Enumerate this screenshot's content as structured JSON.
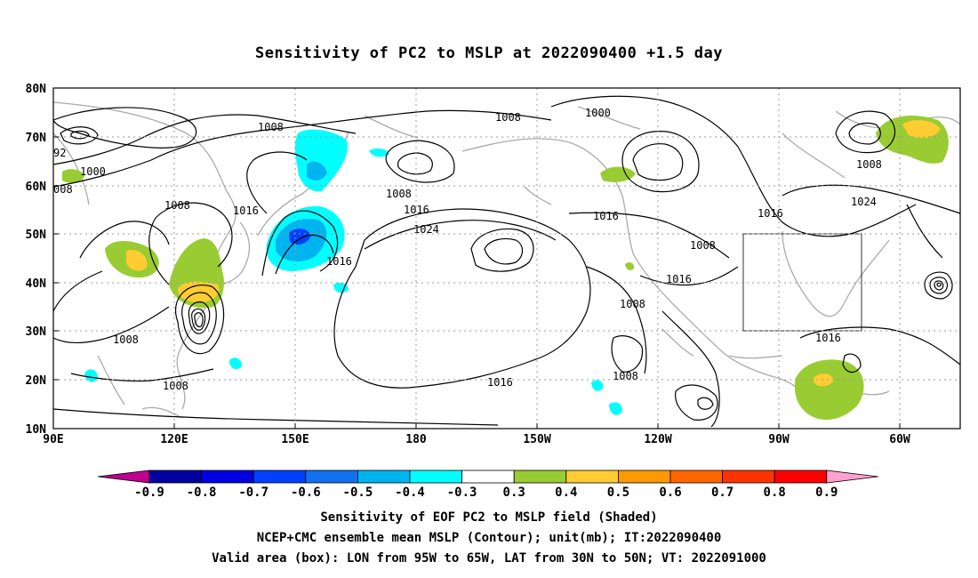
{
  "title": "Sensitivity of PC2 to MSLP at 2022090400 +1.5 day",
  "map": {
    "lat_labels": [
      "80N",
      "70N",
      "60N",
      "50N",
      "40N",
      "30N",
      "20N",
      "10N"
    ],
    "lon_labels": [
      "90E",
      "120E",
      "150E",
      "180",
      "150W",
      "120W",
      "90W",
      "60W"
    ],
    "contour_labels": [
      {
        "text": "1008",
        "role": "contour-label"
      },
      {
        "text": "1000",
        "role": "contour-label"
      },
      {
        "text": "92",
        "role": "contour-label"
      },
      {
        "text": "1000",
        "role": "contour-label"
      },
      {
        "text": "008",
        "role": "contour-label"
      },
      {
        "text": "1008",
        "role": "contour-label"
      },
      {
        "text": "1016",
        "role": "contour-label"
      },
      {
        "text": "1008",
        "role": "contour-label"
      },
      {
        "text": "1016",
        "role": "contour-label"
      },
      {
        "text": "1024",
        "role": "contour-label"
      },
      {
        "text": "1016",
        "role": "contour-label"
      },
      {
        "text": "1008",
        "role": "contour-label"
      },
      {
        "text": "1008",
        "role": "contour-label"
      },
      {
        "text": "1016",
        "role": "contour-label"
      },
      {
        "text": "1008",
        "role": "contour-label"
      },
      {
        "text": "1016",
        "role": "contour-label"
      },
      {
        "text": "1008",
        "role": "contour-label"
      },
      {
        "text": "1008",
        "role": "contour-label"
      },
      {
        "text": "1016",
        "role": "contour-label"
      },
      {
        "text": "1024",
        "role": "contour-label"
      },
      {
        "text": "1016",
        "role": "contour-label"
      },
      {
        "text": "1016",
        "role": "contour-label"
      },
      {
        "text": "1008",
        "role": "contour-label"
      },
      {
        "text": "1008",
        "role": "contour-label"
      }
    ]
  },
  "colorbar": {
    "labels": [
      "-0.9",
      "-0.8",
      "-0.7",
      "-0.6",
      "-0.5",
      "-0.4",
      "-0.3",
      "0.3",
      "0.4",
      "0.5",
      "0.6",
      "0.7",
      "0.8",
      "0.9"
    ],
    "colors": [
      "#0000a0",
      "#0000e0",
      "#0040ff",
      "#1070f0",
      "#00b4f0",
      "#00ffff",
      "#ffffff",
      "#99cc33",
      "#ffcc33",
      "#ff9900",
      "#ff6600",
      "#ff3300",
      "#ff0000"
    ],
    "low_extend_color": "#c00090",
    "high_extend_color": "#ffa0d0"
  },
  "captions": {
    "line1": "Sensitivity of EOF PC2 to MSLP field (Shaded)",
    "line2": "NCEP+CMC ensemble mean MSLP (Contour); unit(mb); IT:2022090400",
    "line3": "Valid area (box): LON from 95W to 65W, LAT from 30N to 50N; VT: 2022091000"
  }
}
